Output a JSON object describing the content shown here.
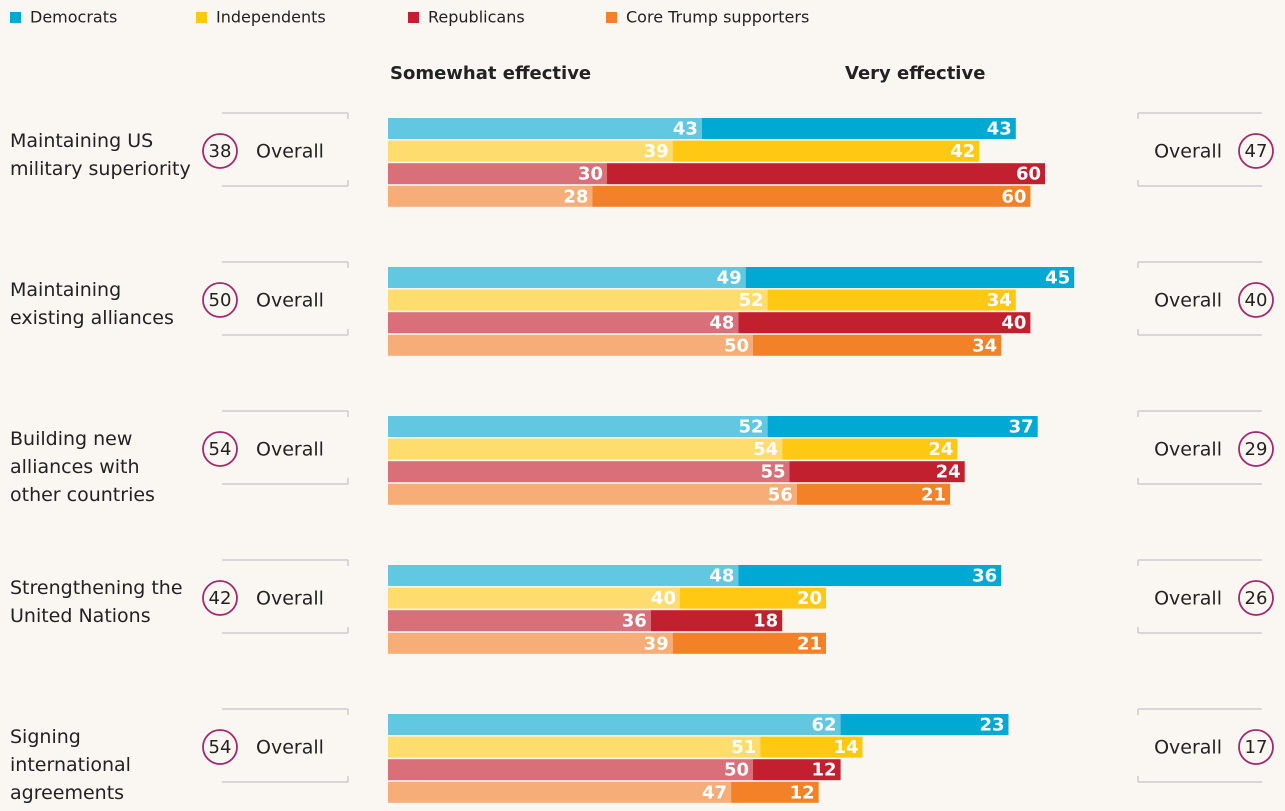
{
  "chart_data": {
    "type": "bar",
    "orientation": "horizontal",
    "stacked": true,
    "segments": [
      "Somewhat effective",
      "Very effective"
    ],
    "categories": [
      "Maintaining US military superiority",
      "Maintaining existing alliances",
      "Building new alliances with other countries",
      "Strengthening the United Nations",
      "Signing international agreements"
    ],
    "series": [
      {
        "name": "Democrats",
        "color": "#00a9d4",
        "light_color": "#62c8e2",
        "somewhat": [
          43,
          49,
          52,
          48,
          62
        ],
        "very": [
          43,
          45,
          37,
          36,
          23
        ]
      },
      {
        "name": "Independents",
        "color": "#ffc813",
        "light_color": "#ffdc6e",
        "somewhat": [
          39,
          52,
          54,
          40,
          51
        ],
        "very": [
          42,
          34,
          24,
          20,
          14
        ]
      },
      {
        "name": "Republicans",
        "color": "#c21f2f",
        "light_color": "#d86f79",
        "somewhat": [
          30,
          48,
          55,
          36,
          50
        ],
        "very": [
          60,
          40,
          24,
          18,
          12
        ]
      },
      {
        "name": "Core Trump supporters",
        "color": "#f28127",
        "light_color": "#f6ad78",
        "somewhat": [
          28,
          50,
          56,
          39,
          47
        ],
        "very": [
          60,
          34,
          21,
          21,
          12
        ]
      }
    ],
    "overall": {
      "label": "Overall",
      "color": "#a3296c",
      "somewhat": [
        38,
        50,
        54,
        42,
        54
      ],
      "very": [
        47,
        40,
        29,
        26,
        17
      ]
    }
  }
}
